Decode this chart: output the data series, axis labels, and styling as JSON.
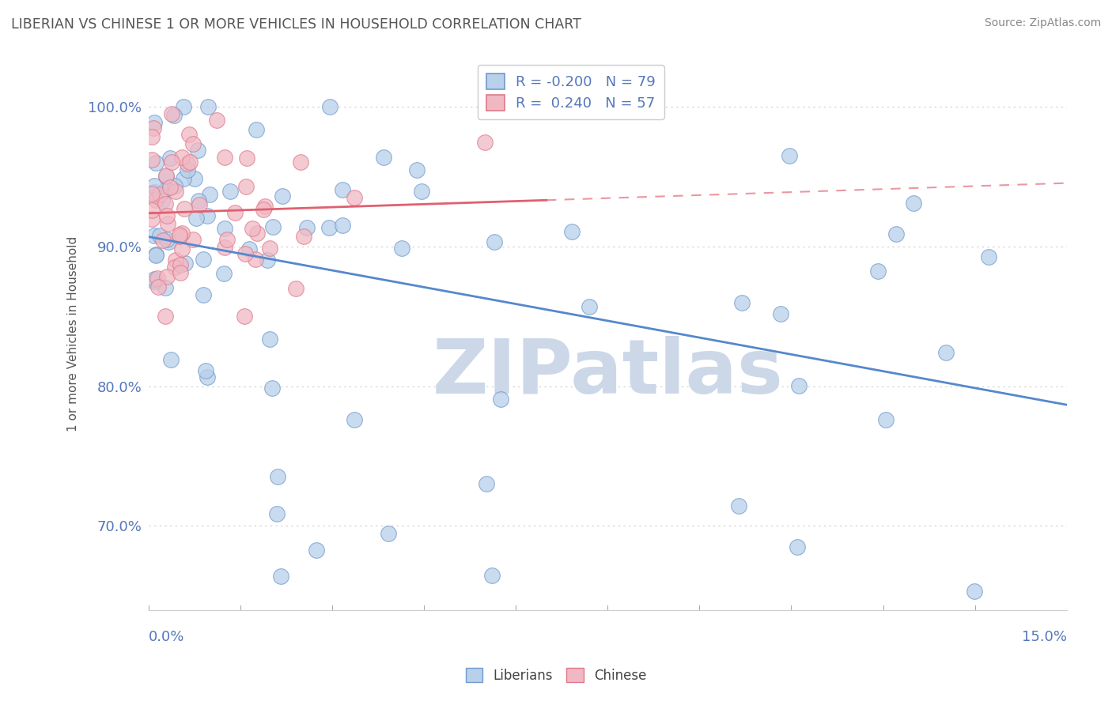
{
  "title": "LIBERIAN VS CHINESE 1 OR MORE VEHICLES IN HOUSEHOLD CORRELATION CHART",
  "source": "Source: ZipAtlas.com",
  "ylabel": "1 or more Vehicles in Household",
  "xlim": [
    0.0,
    15.0
  ],
  "ylim": [
    64.0,
    103.5
  ],
  "yticks": [
    70.0,
    80.0,
    90.0,
    100.0
  ],
  "ytick_labels": [
    "70.0%",
    "80.0%",
    "90.0%",
    "100.0%"
  ],
  "legend_R_blue": "-0.200",
  "legend_N_blue": "79",
  "legend_R_pink": "0.240",
  "legend_N_pink": "57",
  "blue_fill": "#b8d0ea",
  "blue_edge": "#7099cc",
  "pink_fill": "#f0b8c4",
  "pink_edge": "#e07888",
  "blue_line": "#5588cc",
  "pink_line": "#e06070",
  "watermark_color": "#ccd8e8",
  "title_color": "#555555",
  "tick_color": "#5577bb",
  "source_color": "#888888",
  "ylabel_color": "#555555"
}
